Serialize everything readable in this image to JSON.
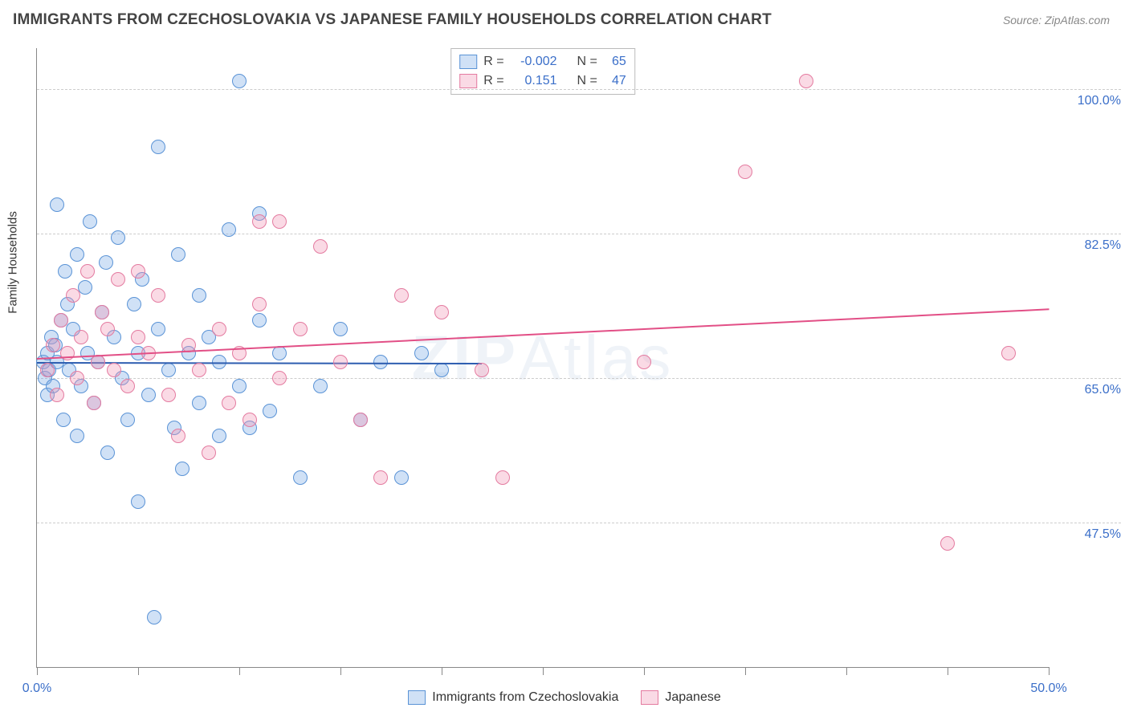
{
  "header": {
    "title": "IMMIGRANTS FROM CZECHOSLOVAKIA VS JAPANESE FAMILY HOUSEHOLDS CORRELATION CHART",
    "source": "Source: ZipAtlas.com"
  },
  "watermark": {
    "bold": "ZIP",
    "light": "Atlas"
  },
  "chart": {
    "type": "scatter",
    "y_axis_title": "Family Households",
    "background_color": "#ffffff",
    "grid_color": "#cccccc",
    "grid_dash": "dashed",
    "axis_color": "#888888",
    "tick_label_color": "#3b6fc9",
    "label_fontsize": 16,
    "xlim": [
      0,
      50
    ],
    "ylim": [
      30,
      105
    ],
    "x_ticks": [
      0,
      5,
      10,
      15,
      20,
      25,
      30,
      35,
      40,
      45,
      50
    ],
    "x_tick_labels": {
      "0": "0.0%",
      "50": "50.0%"
    },
    "y_gridlines": [
      47.5,
      65.0,
      82.5,
      100.0
    ],
    "y_tick_labels": {
      "47.5": "47.5%",
      "65.0": "65.0%",
      "82.5": "82.5%",
      "100.0": "100.0%"
    },
    "point_radius": 9,
    "point_stroke_width": 1.5,
    "series": [
      {
        "name": "Immigrants from Czechoslovakia",
        "fill_color": "rgba(120,170,230,0.35)",
        "stroke_color": "#5a93d6",
        "trend_color": "#2d5db0",
        "trend_width": 2,
        "R": "-0.002",
        "N": "65",
        "trend": {
          "x1": 0,
          "y1": 67.0,
          "x2": 22,
          "y2": 66.9
        },
        "points": [
          [
            0.3,
            67
          ],
          [
            0.4,
            65
          ],
          [
            0.5,
            68
          ],
          [
            0.5,
            63
          ],
          [
            0.6,
            66
          ],
          [
            0.7,
            70
          ],
          [
            0.8,
            64
          ],
          [
            0.9,
            69
          ],
          [
            1.0,
            67
          ],
          [
            1.0,
            86
          ],
          [
            1.2,
            72
          ],
          [
            1.3,
            60
          ],
          [
            1.4,
            78
          ],
          [
            1.5,
            74
          ],
          [
            1.6,
            66
          ],
          [
            1.8,
            71
          ],
          [
            2.0,
            80
          ],
          [
            2.0,
            58
          ],
          [
            2.2,
            64
          ],
          [
            2.4,
            76
          ],
          [
            2.5,
            68
          ],
          [
            2.6,
            84
          ],
          [
            2.8,
            62
          ],
          [
            3.0,
            67
          ],
          [
            3.2,
            73
          ],
          [
            3.4,
            79
          ],
          [
            3.5,
            56
          ],
          [
            3.8,
            70
          ],
          [
            4.0,
            82
          ],
          [
            4.2,
            65
          ],
          [
            4.5,
            60
          ],
          [
            4.8,
            74
          ],
          [
            5.0,
            68
          ],
          [
            5.0,
            50
          ],
          [
            5.2,
            77
          ],
          [
            5.5,
            63
          ],
          [
            5.8,
            36
          ],
          [
            6.0,
            71
          ],
          [
            6.0,
            93
          ],
          [
            6.5,
            66
          ],
          [
            6.8,
            59
          ],
          [
            7.0,
            80
          ],
          [
            7.2,
            54
          ],
          [
            7.5,
            68
          ],
          [
            8.0,
            75
          ],
          [
            8.0,
            62
          ],
          [
            8.5,
            70
          ],
          [
            9.0,
            67
          ],
          [
            9.0,
            58
          ],
          [
            9.5,
            83
          ],
          [
            10.0,
            64
          ],
          [
            10.0,
            101
          ],
          [
            10.5,
            59
          ],
          [
            11.0,
            72
          ],
          [
            11.0,
            85
          ],
          [
            11.5,
            61
          ],
          [
            12.0,
            68
          ],
          [
            13.0,
            53
          ],
          [
            14.0,
            64
          ],
          [
            15.0,
            71
          ],
          [
            16.0,
            60
          ],
          [
            17.0,
            67
          ],
          [
            18.0,
            53
          ],
          [
            19.0,
            68
          ],
          [
            20.0,
            66
          ]
        ]
      },
      {
        "name": "Japanese",
        "fill_color": "rgba(240,150,180,0.35)",
        "stroke_color": "#e47ba0",
        "trend_color": "#e24f86",
        "trend_width": 2,
        "R": "0.151",
        "N": "47",
        "trend": {
          "x1": 0,
          "y1": 67.5,
          "x2": 50,
          "y2": 73.5
        },
        "points": [
          [
            0.5,
            66
          ],
          [
            0.8,
            69
          ],
          [
            1.0,
            63
          ],
          [
            1.2,
            72
          ],
          [
            1.5,
            68
          ],
          [
            1.8,
            75
          ],
          [
            2.0,
            65
          ],
          [
            2.2,
            70
          ],
          [
            2.5,
            78
          ],
          [
            2.8,
            62
          ],
          [
            3.0,
            67
          ],
          [
            3.2,
            73
          ],
          [
            3.5,
            71
          ],
          [
            3.8,
            66
          ],
          [
            4.0,
            77
          ],
          [
            4.5,
            64
          ],
          [
            5.0,
            70
          ],
          [
            5.0,
            78
          ],
          [
            5.5,
            68
          ],
          [
            6.0,
            75
          ],
          [
            6.5,
            63
          ],
          [
            7.0,
            58
          ],
          [
            7.5,
            69
          ],
          [
            8.0,
            66
          ],
          [
            8.5,
            56
          ],
          [
            9.0,
            71
          ],
          [
            9.5,
            62
          ],
          [
            10.0,
            68
          ],
          [
            10.5,
            60
          ],
          [
            11.0,
            84
          ],
          [
            11.0,
            74
          ],
          [
            12.0,
            65
          ],
          [
            13.0,
            71
          ],
          [
            14.0,
            81
          ],
          [
            15.0,
            67
          ],
          [
            16.0,
            60
          ],
          [
            17.0,
            53
          ],
          [
            18.0,
            75
          ],
          [
            20.0,
            73
          ],
          [
            22.0,
            66
          ],
          [
            23.0,
            53
          ],
          [
            30.0,
            67
          ],
          [
            35.0,
            90
          ],
          [
            38.0,
            101
          ],
          [
            45.0,
            45
          ],
          [
            48.0,
            68
          ],
          [
            12.0,
            84
          ]
        ]
      }
    ]
  },
  "stats_legend": {
    "r_label": "R =",
    "n_label": "N =",
    "label_color": "#444444",
    "value_color": "#3b6fc9",
    "border_color": "#bbbbbb",
    "fontsize": 16
  },
  "bottom_legend": {
    "fontsize": 16,
    "text_color": "#333333"
  }
}
